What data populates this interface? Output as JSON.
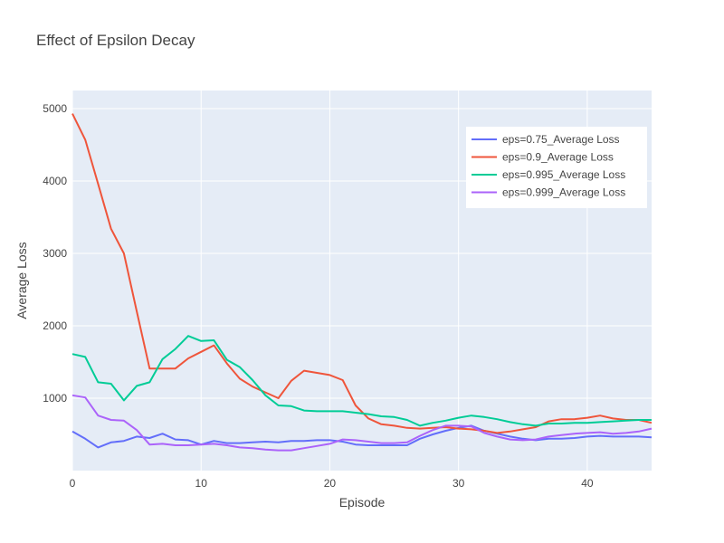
{
  "chart_data": {
    "type": "line",
    "title": "Effect of Epsilon Decay",
    "xlabel": "Episode",
    "ylabel": "Average Loss",
    "xlim": [
      0,
      45
    ],
    "ylim": [
      0,
      5250
    ],
    "x_ticks": [
      0,
      10,
      20,
      30,
      40
    ],
    "y_ticks": [
      1000,
      2000,
      3000,
      4000,
      5000
    ],
    "x_tick_labels": [
      "0",
      "10",
      "20",
      "30",
      "40"
    ],
    "y_tick_labels": [
      "1000",
      "2000",
      "3000",
      "4000",
      "5000"
    ],
    "grid": true,
    "legend_position": "top-right",
    "x": [
      0,
      1,
      2,
      3,
      4,
      5,
      6,
      7,
      8,
      9,
      10,
      11,
      12,
      13,
      14,
      15,
      16,
      17,
      18,
      19,
      20,
      21,
      22,
      23,
      24,
      25,
      26,
      27,
      28,
      29,
      30,
      31,
      32,
      33,
      34,
      35,
      36,
      37,
      38,
      39,
      40,
      41,
      42,
      43,
      44,
      45
    ],
    "series": [
      {
        "name": "eps=0.75_Average Loss",
        "color": "#636efa",
        "values": [
          540,
          440,
          320,
          390,
          410,
          470,
          450,
          510,
          430,
          420,
          360,
          410,
          380,
          380,
          390,
          400,
          390,
          410,
          410,
          420,
          420,
          400,
          360,
          350,
          350,
          350,
          350,
          440,
          500,
          550,
          590,
          620,
          550,
          510,
          470,
          440,
          420,
          440,
          440,
          450,
          470,
          480,
          470,
          470,
          470,
          460
        ]
      },
      {
        "name": "eps=0.9_Average Loss",
        "color": "#ef553b",
        "values": [
          4930,
          4570,
          3960,
          3340,
          3000,
          2200,
          1410,
          1410,
          1410,
          1550,
          1640,
          1730,
          1480,
          1270,
          1160,
          1080,
          1000,
          1240,
          1380,
          1350,
          1320,
          1250,
          900,
          720,
          640,
          620,
          590,
          580,
          590,
          600,
          580,
          570,
          550,
          520,
          540,
          570,
          600,
          680,
          710,
          710,
          730,
          760,
          720,
          700,
          700,
          660
        ]
      },
      {
        "name": "eps=0.995_Average Loss",
        "color": "#00cc96",
        "values": [
          1610,
          1570,
          1220,
          1200,
          970,
          1170,
          1220,
          1540,
          1680,
          1860,
          1790,
          1800,
          1530,
          1430,
          1250,
          1040,
          900,
          890,
          830,
          820,
          820,
          820,
          800,
          780,
          750,
          740,
          700,
          620,
          660,
          690,
          730,
          760,
          740,
          710,
          670,
          640,
          620,
          650,
          650,
          660,
          660,
          670,
          680,
          690,
          700,
          700
        ]
      },
      {
        "name": "eps=0.999_Average Loss",
        "color": "#ab63fa",
        "values": [
          1040,
          1010,
          760,
          700,
          690,
          560,
          360,
          370,
          350,
          350,
          360,
          370,
          350,
          320,
          310,
          290,
          280,
          280,
          310,
          340,
          370,
          430,
          420,
          400,
          380,
          380,
          390,
          480,
          560,
          620,
          620,
          610,
          520,
          470,
          430,
          420,
          430,
          470,
          490,
          510,
          520,
          530,
          510,
          520,
          540,
          580
        ]
      }
    ]
  }
}
